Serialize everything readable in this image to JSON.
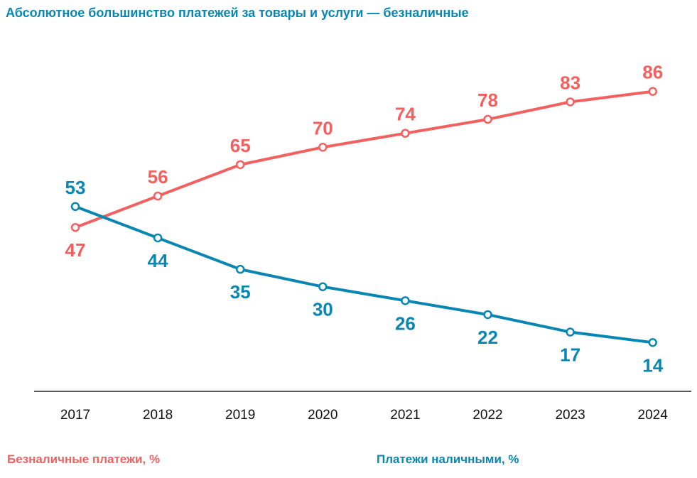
{
  "chart_data": {
    "type": "line",
    "title": "Абсолютное большинство платежей за товары и услуги — безналичные",
    "xlabel": "",
    "ylabel": "",
    "categories": [
      "2017",
      "2018",
      "2019",
      "2020",
      "2021",
      "2022",
      "2023",
      "2024"
    ],
    "series": [
      {
        "name": "Безналичные платежи, %",
        "values": [
          47,
          56,
          65,
          70,
          74,
          78,
          83,
          86
        ],
        "color": "#f26060"
      },
      {
        "name": "Платежи наличными, %",
        "values": [
          53,
          44,
          35,
          30,
          26,
          22,
          17,
          14
        ],
        "color": "#0a86b2"
      }
    ],
    "ylim": [
      0,
      100
    ],
    "grid": false,
    "legend": "bottom"
  },
  "colors": {
    "title": "#0a86b2",
    "axis": "#222222",
    "tick_text": "#111111"
  }
}
